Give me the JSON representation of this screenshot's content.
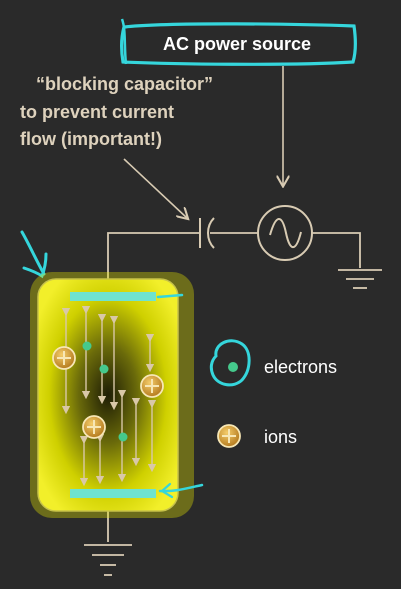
{
  "power_source": {
    "label": "AC power source"
  },
  "annotation": {
    "lines": [
      "“blocking capacitor”",
      "to prevent current",
      "flow (important!)"
    ]
  },
  "legend": {
    "electrons_label": "electrons",
    "ions_label": "ions"
  },
  "colors": {
    "background": "#2a2a2a",
    "wire": "#d8cbb3",
    "annotation_text": "#ded2bd",
    "highlight_cyan": "#35d6dc",
    "chamber_glow": "#e8e800",
    "electrode": "#6fe3cf",
    "electron_dot": "#45c98c",
    "ion_fill": "#d9a53b"
  },
  "icons": {
    "capacitor": "capacitor-symbol",
    "ac_source": "sine-wave-source-symbol",
    "ground": "ground-symbol",
    "ion": "plus-in-circle",
    "electron": "filled-dot"
  }
}
